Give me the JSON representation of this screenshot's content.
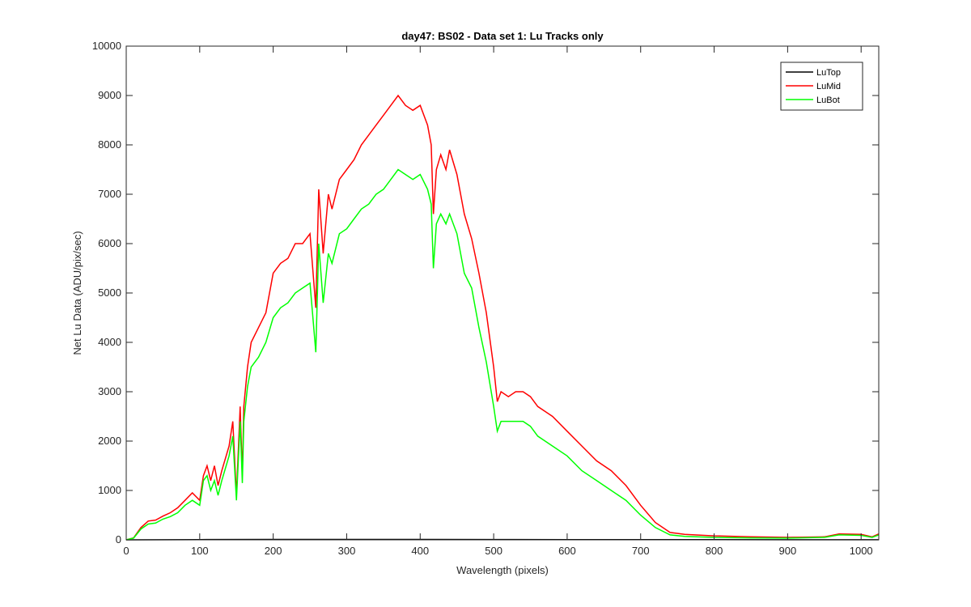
{
  "chart_data": {
    "type": "line",
    "title": "day47: BS02 - Data set 1: Lu Tracks only",
    "xlabel": "Wavelength (pixels)",
    "ylabel": "Net Lu Data (ADU/pix/sec)",
    "xlim": [
      0,
      1024
    ],
    "ylim": [
      0,
      10000
    ],
    "xticks": [
      0,
      100,
      200,
      300,
      400,
      500,
      600,
      700,
      800,
      900,
      1000
    ],
    "yticks": [
      0,
      1000,
      2000,
      3000,
      4000,
      5000,
      6000,
      7000,
      8000,
      9000,
      10000
    ],
    "grid": false,
    "legend_position": "top-right",
    "series": [
      {
        "name": "LuTop",
        "color": "#000000",
        "points": [
          [
            0,
            0
          ],
          [
            100,
            5
          ],
          [
            200,
            8
          ],
          [
            300,
            8
          ],
          [
            400,
            8
          ],
          [
            500,
            6
          ],
          [
            600,
            5
          ],
          [
            700,
            4
          ],
          [
            800,
            3
          ],
          [
            900,
            2
          ],
          [
            1024,
            2
          ]
        ]
      },
      {
        "name": "LuMid",
        "color": "#ff0000",
        "points": [
          [
            0,
            0
          ],
          [
            10,
            40
          ],
          [
            20,
            250
          ],
          [
            30,
            380
          ],
          [
            40,
            400
          ],
          [
            50,
            480
          ],
          [
            60,
            550
          ],
          [
            70,
            650
          ],
          [
            80,
            800
          ],
          [
            90,
            950
          ],
          [
            100,
            800
          ],
          [
            105,
            1300
          ],
          [
            110,
            1500
          ],
          [
            115,
            1200
          ],
          [
            120,
            1500
          ],
          [
            125,
            1100
          ],
          [
            130,
            1400
          ],
          [
            140,
            1900
          ],
          [
            145,
            2400
          ],
          [
            150,
            900
          ],
          [
            155,
            2700
          ],
          [
            158,
            1300
          ],
          [
            160,
            2700
          ],
          [
            165,
            3500
          ],
          [
            170,
            4000
          ],
          [
            180,
            4300
          ],
          [
            190,
            4600
          ],
          [
            200,
            5400
          ],
          [
            210,
            5600
          ],
          [
            220,
            5700
          ],
          [
            230,
            6000
          ],
          [
            240,
            6000
          ],
          [
            250,
            6200
          ],
          [
            258,
            4700
          ],
          [
            262,
            7100
          ],
          [
            268,
            5800
          ],
          [
            275,
            7000
          ],
          [
            280,
            6700
          ],
          [
            290,
            7300
          ],
          [
            300,
            7500
          ],
          [
            310,
            7700
          ],
          [
            320,
            8000
          ],
          [
            330,
            8200
          ],
          [
            340,
            8400
          ],
          [
            350,
            8600
          ],
          [
            360,
            8800
          ],
          [
            370,
            9000
          ],
          [
            380,
            8800
          ],
          [
            390,
            8700
          ],
          [
            400,
            8800
          ],
          [
            410,
            8400
          ],
          [
            415,
            8000
          ],
          [
            418,
            6600
          ],
          [
            422,
            7500
          ],
          [
            428,
            7800
          ],
          [
            435,
            7500
          ],
          [
            440,
            7900
          ],
          [
            450,
            7400
          ],
          [
            460,
            6600
          ],
          [
            470,
            6100
          ],
          [
            480,
            5400
          ],
          [
            490,
            4600
          ],
          [
            500,
            3500
          ],
          [
            505,
            2800
          ],
          [
            510,
            3000
          ],
          [
            520,
            2900
          ],
          [
            530,
            3000
          ],
          [
            540,
            3000
          ],
          [
            550,
            2900
          ],
          [
            560,
            2700
          ],
          [
            570,
            2600
          ],
          [
            580,
            2500
          ],
          [
            600,
            2200
          ],
          [
            620,
            1900
          ],
          [
            640,
            1600
          ],
          [
            660,
            1400
          ],
          [
            680,
            1100
          ],
          [
            700,
            700
          ],
          [
            720,
            350
          ],
          [
            740,
            150
          ],
          [
            760,
            110
          ],
          [
            800,
            80
          ],
          [
            850,
            60
          ],
          [
            900,
            50
          ],
          [
            950,
            60
          ],
          [
            970,
            120
          ],
          [
            1000,
            110
          ],
          [
            1015,
            60
          ],
          [
            1024,
            120
          ]
        ]
      },
      {
        "name": "LuBot",
        "color": "#00ff00",
        "points": [
          [
            0,
            0
          ],
          [
            10,
            35
          ],
          [
            20,
            220
          ],
          [
            30,
            320
          ],
          [
            40,
            340
          ],
          [
            50,
            420
          ],
          [
            60,
            470
          ],
          [
            70,
            550
          ],
          [
            80,
            700
          ],
          [
            90,
            800
          ],
          [
            100,
            700
          ],
          [
            105,
            1200
          ],
          [
            110,
            1300
          ],
          [
            115,
            1000
          ],
          [
            120,
            1200
          ],
          [
            125,
            900
          ],
          [
            130,
            1200
          ],
          [
            140,
            1700
          ],
          [
            145,
            2100
          ],
          [
            150,
            800
          ],
          [
            155,
            2400
          ],
          [
            158,
            1150
          ],
          [
            160,
            2400
          ],
          [
            165,
            3100
          ],
          [
            170,
            3500
          ],
          [
            180,
            3700
          ],
          [
            190,
            4000
          ],
          [
            200,
            4500
          ],
          [
            210,
            4700
          ],
          [
            220,
            4800
          ],
          [
            230,
            5000
          ],
          [
            240,
            5100
          ],
          [
            250,
            5200
          ],
          [
            258,
            3800
          ],
          [
            262,
            6000
          ],
          [
            268,
            4800
          ],
          [
            275,
            5800
          ],
          [
            280,
            5600
          ],
          [
            290,
            6200
          ],
          [
            300,
            6300
          ],
          [
            310,
            6500
          ],
          [
            320,
            6700
          ],
          [
            330,
            6800
          ],
          [
            340,
            7000
          ],
          [
            350,
            7100
          ],
          [
            360,
            7300
          ],
          [
            370,
            7500
          ],
          [
            380,
            7400
          ],
          [
            390,
            7300
          ],
          [
            400,
            7400
          ],
          [
            410,
            7100
          ],
          [
            415,
            6800
          ],
          [
            418,
            5500
          ],
          [
            422,
            6400
          ],
          [
            428,
            6600
          ],
          [
            435,
            6400
          ],
          [
            440,
            6600
          ],
          [
            450,
            6200
          ],
          [
            460,
            5400
          ],
          [
            470,
            5100
          ],
          [
            480,
            4300
          ],
          [
            490,
            3600
          ],
          [
            500,
            2700
          ],
          [
            505,
            2200
          ],
          [
            510,
            2400
          ],
          [
            520,
            2400
          ],
          [
            530,
            2400
          ],
          [
            540,
            2400
          ],
          [
            550,
            2300
          ],
          [
            560,
            2100
          ],
          [
            570,
            2000
          ],
          [
            580,
            1900
          ],
          [
            600,
            1700
          ],
          [
            620,
            1400
          ],
          [
            640,
            1200
          ],
          [
            660,
            1000
          ],
          [
            680,
            800
          ],
          [
            700,
            500
          ],
          [
            720,
            250
          ],
          [
            740,
            100
          ],
          [
            760,
            70
          ],
          [
            800,
            50
          ],
          [
            850,
            40
          ],
          [
            900,
            35
          ],
          [
            950,
            50
          ],
          [
            970,
            100
          ],
          [
            1000,
            90
          ],
          [
            1015,
            50
          ],
          [
            1024,
            100
          ]
        ]
      }
    ]
  }
}
